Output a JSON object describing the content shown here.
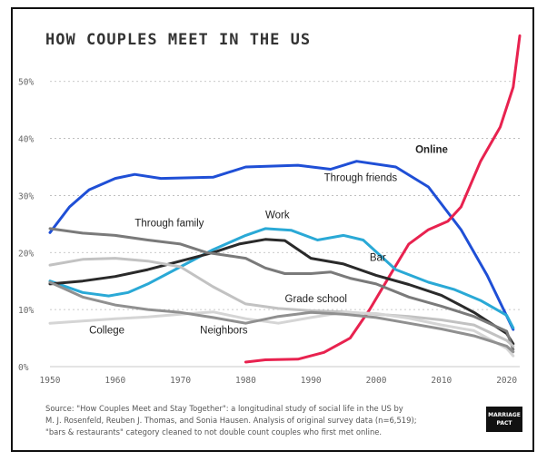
{
  "chart_data": {
    "type": "line",
    "title": "HOW COUPLES MEET IN THE US",
    "xlabel": "",
    "ylabel": "",
    "xlim": [
      1950,
      2022
    ],
    "ylim": [
      0,
      56
    ],
    "x_ticks": [
      "1950",
      "1960",
      "1970",
      "1980",
      "1990",
      "2000",
      "2010",
      "2020"
    ],
    "y_ticks": [
      "0%",
      "10%",
      "20%",
      "30%",
      "40%",
      "50%"
    ],
    "grid": true,
    "series": [
      {
        "name": "Through friends",
        "color": "#1f4fd6",
        "points": [
          [
            1950,
            23.5
          ],
          [
            1953,
            28
          ],
          [
            1956,
            31
          ],
          [
            1960,
            33
          ],
          [
            1963,
            33.7
          ],
          [
            1967,
            33
          ],
          [
            1975,
            33.2
          ],
          [
            1980,
            35
          ],
          [
            1988,
            35.3
          ],
          [
            1993,
            34.6
          ],
          [
            1997,
            36
          ],
          [
            2003,
            35
          ],
          [
            2008,
            31.5
          ],
          [
            2013,
            24
          ],
          [
            2017,
            16
          ],
          [
            2021,
            6.5
          ]
        ]
      },
      {
        "name": "Online",
        "color": "#e8224f",
        "points": [
          [
            1980,
            0.8
          ],
          [
            1983,
            1.2
          ],
          [
            1988,
            1.3
          ],
          [
            1992,
            2.5
          ],
          [
            1996,
            5
          ],
          [
            1999,
            10
          ],
          [
            2002,
            15.8
          ],
          [
            2005,
            21.5
          ],
          [
            2008,
            24
          ],
          [
            2011,
            25.5
          ],
          [
            2013,
            28
          ],
          [
            2016,
            36
          ],
          [
            2019,
            42
          ],
          [
            2021,
            49
          ],
          [
            2022,
            58
          ]
        ]
      },
      {
        "name": "Work",
        "color": "#2aa9d6",
        "points": [
          [
            1950,
            15
          ],
          [
            1955,
            13
          ],
          [
            1959,
            12.4
          ],
          [
            1962,
            13
          ],
          [
            1965,
            14.5
          ],
          [
            1970,
            17.5
          ],
          [
            1975,
            20.5
          ],
          [
            1980,
            23
          ],
          [
            1983,
            24.2
          ],
          [
            1987,
            23.9
          ],
          [
            1991,
            22.2
          ],
          [
            1995,
            23
          ],
          [
            1998,
            22.2
          ],
          [
            2003,
            17
          ],
          [
            2008,
            14.8
          ],
          [
            2012,
            13.5
          ],
          [
            2016,
            11.6
          ],
          [
            2020,
            9
          ],
          [
            2021,
            6.8
          ]
        ]
      },
      {
        "name": "Bar",
        "color": "#2a2a2a",
        "points": [
          [
            1950,
            14.5
          ],
          [
            1955,
            15
          ],
          [
            1960,
            15.8
          ],
          [
            1965,
            17
          ],
          [
            1970,
            18.5
          ],
          [
            1975,
            20
          ],
          [
            1979,
            21.5
          ],
          [
            1983,
            22.3
          ],
          [
            1986,
            22.1
          ],
          [
            1990,
            19
          ],
          [
            1995,
            18
          ],
          [
            2000,
            16
          ],
          [
            2005,
            14.4
          ],
          [
            2010,
            12.5
          ],
          [
            2015,
            9.5
          ],
          [
            2020,
            5.8
          ],
          [
            2021,
            4
          ]
        ]
      },
      {
        "name": "Through family",
        "color": "#7a7a7a",
        "points": [
          [
            1950,
            24.2
          ],
          [
            1955,
            23.4
          ],
          [
            1960,
            23
          ],
          [
            1965,
            22.2
          ],
          [
            1970,
            21.5
          ],
          [
            1974,
            20
          ],
          [
            1977,
            19.5
          ],
          [
            1980,
            19
          ],
          [
            1983,
            17.3
          ],
          [
            1986,
            16.3
          ],
          [
            1990,
            16.3
          ],
          [
            1993,
            16.6
          ],
          [
            1996,
            15.5
          ],
          [
            2000,
            14.5
          ],
          [
            2005,
            12.2
          ],
          [
            2010,
            10.6
          ],
          [
            2015,
            8.8
          ],
          [
            2020,
            6.2
          ],
          [
            2021,
            3
          ]
        ]
      },
      {
        "name": "Grade school",
        "color": "#c2c2c2",
        "points": [
          [
            1950,
            17.8
          ],
          [
            1955,
            18.8
          ],
          [
            1960,
            19
          ],
          [
            1965,
            18.5
          ],
          [
            1970,
            17.5
          ],
          [
            1975,
            14
          ],
          [
            1980,
            11
          ],
          [
            1985,
            10.2
          ],
          [
            1990,
            9.8
          ],
          [
            1995,
            9.6
          ],
          [
            2000,
            9.2
          ],
          [
            2005,
            8.8
          ],
          [
            2010,
            8.2
          ],
          [
            2015,
            7.3
          ],
          [
            2020,
            4.6
          ],
          [
            2021,
            3.6
          ]
        ]
      },
      {
        "name": "College",
        "color": "#d5d5d5",
        "points": [
          [
            1950,
            7.6
          ],
          [
            1955,
            8
          ],
          [
            1960,
            8.4
          ],
          [
            1965,
            8.7
          ],
          [
            1970,
            9.2
          ],
          [
            1975,
            9.6
          ],
          [
            1980,
            8.4
          ],
          [
            1985,
            7.6
          ],
          [
            1990,
            8.6
          ],
          [
            1995,
            9.5
          ],
          [
            2000,
            9.3
          ],
          [
            2005,
            8.5
          ],
          [
            2010,
            7.3
          ],
          [
            2015,
            6.3
          ],
          [
            2020,
            3.2
          ],
          [
            2021,
            1.9
          ]
        ]
      },
      {
        "name": "Neighbors",
        "color": "#909090",
        "points": [
          [
            1950,
            14.8
          ],
          [
            1955,
            12.2
          ],
          [
            1960,
            10.8
          ],
          [
            1965,
            10
          ],
          [
            1970,
            9.5
          ],
          [
            1975,
            8.6
          ],
          [
            1980,
            7.6
          ],
          [
            1985,
            8.8
          ],
          [
            1990,
            9.5
          ],
          [
            1995,
            9.2
          ],
          [
            2000,
            8.6
          ],
          [
            2005,
            7.6
          ],
          [
            2010,
            6.6
          ],
          [
            2015,
            5.4
          ],
          [
            2020,
            3.6
          ],
          [
            2021,
            2.6
          ]
        ]
      }
    ],
    "annotations": [
      {
        "text": "Through friends",
        "x": 1992,
        "y": 32.5,
        "bold": false
      },
      {
        "text": "Online",
        "x": 2006,
        "y": 37.5,
        "bold": true
      },
      {
        "text": "Work",
        "x": 1983,
        "y": 26,
        "bold": false
      },
      {
        "text": "Bar",
        "x": 1999,
        "y": 18.5,
        "bold": false
      },
      {
        "text": "Through family",
        "x": 1963,
        "y": 24.6,
        "bold": false
      },
      {
        "text": "Grade school",
        "x": 1986,
        "y": 11.3,
        "bold": false
      },
      {
        "text": "College",
        "x": 1956,
        "y": 5.8,
        "bold": false
      },
      {
        "text": "Neighbors",
        "x": 1973,
        "y": 5.8,
        "bold": false
      }
    ]
  },
  "source_lines": [
    "Source: \"How Couples Meet and Stay Together\": a longitudinal study of social life in the US by",
    "M. J. Rosenfeld, Reuben J. Thomas, and Sonia Hausen. Analysis of original survey data (n=6,519);",
    "\"bars & restaurants\" category cleaned to not double count couples who first met online."
  ],
  "logo": {
    "line1": "MARRIAGE",
    "line2": "PACT"
  }
}
